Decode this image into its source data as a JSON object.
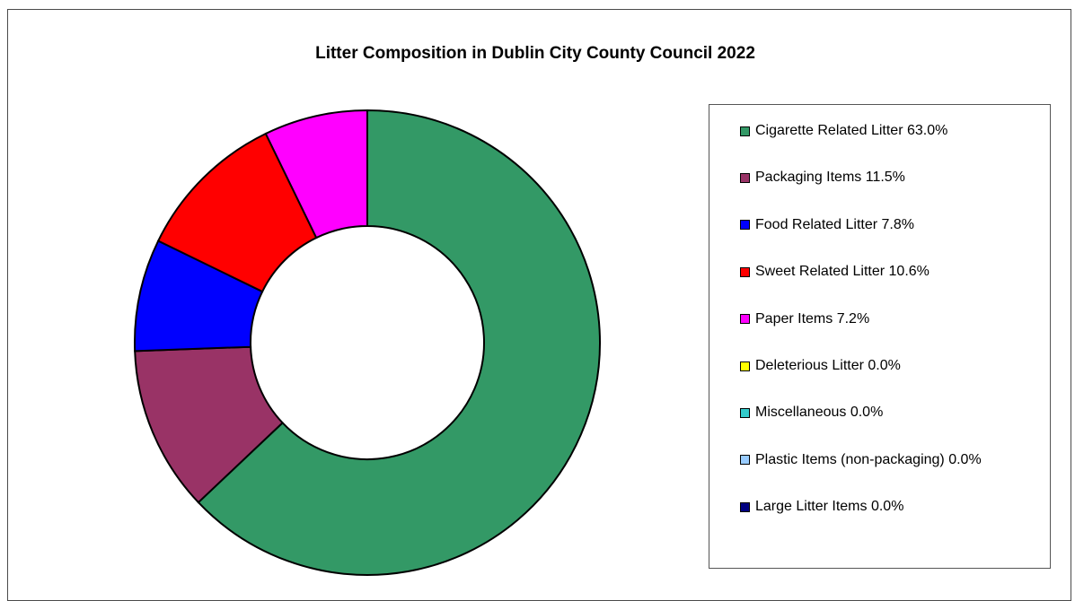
{
  "chart_data": {
    "type": "pie",
    "title": "Litter Composition in Dublin City County Council 2022",
    "donut": true,
    "legend_placement": "right",
    "slices": [
      {
        "label": "Cigarette Related Litter 63.0%",
        "value": 63.0,
        "color": "#339966"
      },
      {
        "label": "Packaging Items 11.5%",
        "value": 11.5,
        "color": "#993366"
      },
      {
        "label": "Food Related Litter 7.8%",
        "value": 7.8,
        "color": "#0000ff"
      },
      {
        "label": "Sweet Related Litter 10.6%",
        "value": 10.6,
        "color": "#ff0000"
      },
      {
        "label": "Paper Items 7.2%",
        "value": 7.2,
        "color": "#ff00ff"
      },
      {
        "label": "Deleterious Litter 0.0%",
        "value": 0.0,
        "color": "#ffff00"
      },
      {
        "label": "Miscellaneous 0.0%",
        "value": 0.0,
        "color": "#33cccc"
      },
      {
        "label": "Plastic Items (non-packaging) 0.0%",
        "value": 0.0,
        "color": "#99ccff"
      },
      {
        "label": "Large Litter Items 0.0%",
        "value": 0.0,
        "color": "#000080"
      }
    ]
  }
}
